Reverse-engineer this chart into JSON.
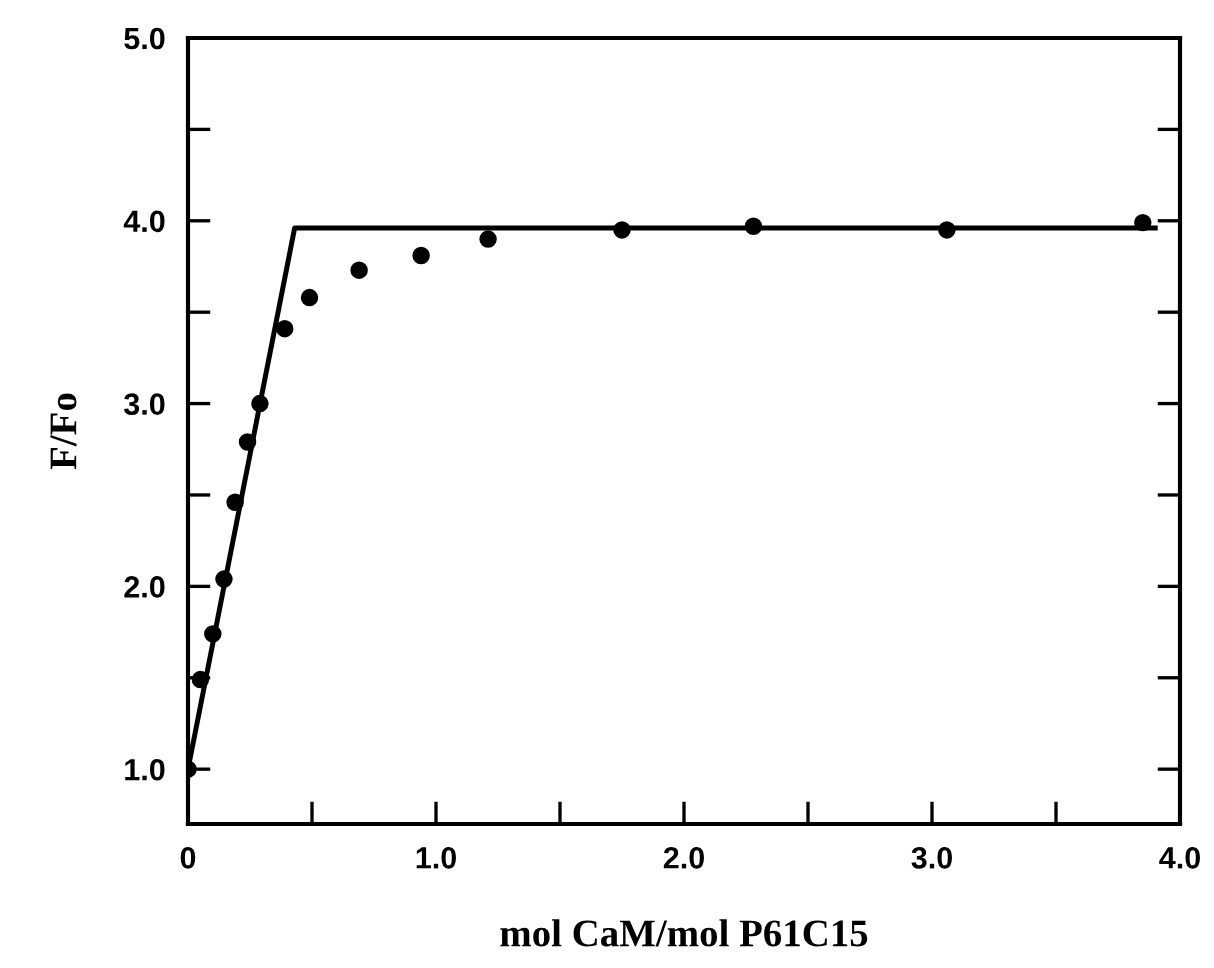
{
  "chart_data": {
    "type": "scatter",
    "xlabel": "mol CaM/mol P61C15",
    "ylabel": "F/Fo",
    "series": [
      {
        "color": "#000000",
        "marker": "circle",
        "x": [
          0,
          0.05,
          0.1,
          0.145,
          0.19,
          0.24,
          0.29,
          0.39,
          0.49,
          0.69,
          0.94,
          1.21,
          1.75,
          2.28,
          3.06,
          3.85
        ],
        "values": [
          1.0,
          1.49,
          1.74,
          2.04,
          2.46,
          2.79,
          3.0,
          3.41,
          3.58,
          3.73,
          3.81,
          3.9,
          3.95,
          3.97,
          3.95,
          3.99
        ]
      },
      {
        "type": "line",
        "color": "#000000",
        "marker": "none",
        "line_style": "solid",
        "x": [
          0,
          0.43,
          3.9
        ],
        "values": [
          1.0,
          3.96,
          3.96
        ]
      }
    ],
    "xlim": [
      0,
      4.0
    ],
    "ylim": [
      0.7,
      5.0
    ],
    "xticks": [
      0,
      {
        "value": 0.5,
        "label": null
      },
      {
        "value": 1,
        "label": "1.0"
      },
      {
        "value": 1.5,
        "label": null
      },
      {
        "value": 2,
        "label": "2.0"
      },
      {
        "value": 2.5,
        "label": null
      },
      {
        "value": 3,
        "label": "3.0"
      },
      {
        "value": 3.5,
        "label": null
      },
      {
        "value": 4,
        "label": "4.0"
      }
    ],
    "yticks": [
      {
        "value": 1,
        "label": "1.0"
      },
      {
        "value": 1.5,
        "label": null
      },
      {
        "value": 2,
        "label": "2.0"
      },
      {
        "value": 2.5,
        "label": null
      },
      {
        "value": 3,
        "label": "3.0"
      },
      {
        "value": 3.5,
        "label": null
      },
      {
        "value": 4,
        "label": "4.0"
      },
      {
        "value": 4.5,
        "label": null
      },
      {
        "value": 5,
        "label": "5.0"
      }
    ],
    "grid": false,
    "legend": false
  }
}
